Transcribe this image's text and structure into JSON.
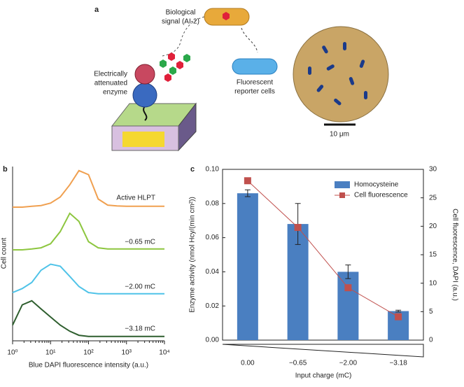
{
  "panel_a": {
    "label": "a",
    "signal_label": [
      "Biological",
      "signal (AI-2)"
    ],
    "enzyme_label": [
      "Electrically",
      "attenuated",
      "enzyme"
    ],
    "reporter_label": [
      "Fluorescent",
      "reporter cells"
    ],
    "scale_bar": "10 μm"
  },
  "chart_data": [
    {
      "type": "line",
      "panel": "b",
      "xlabel": "Blue DAPI fluorescence intensity (a.u.)",
      "ylabel": "Cell count",
      "log_x": true,
      "xlim": [
        1,
        10000
      ],
      "xticks": [
        {
          "value": 1,
          "label": "10⁰"
        },
        {
          "value": 10,
          "label": "10¹"
        },
        {
          "value": 100,
          "label": "10²"
        },
        {
          "value": 1000,
          "label": "10³"
        },
        {
          "value": 10000,
          "label": "10⁴"
        }
      ],
      "x": [
        1,
        1.8,
        3.2,
        5.6,
        10,
        18,
        32,
        56,
        100,
        180,
        320,
        560,
        1000,
        10000
      ],
      "series": [
        {
          "name": "Active HLPT",
          "color": "#f0a050",
          "values": [
            0,
            0,
            0.02,
            0.04,
            0.1,
            0.25,
            0.55,
            0.9,
            0.8,
            0.2,
            0.05,
            0.03,
            0.02,
            0.02
          ]
        },
        {
          "name": "−0.65 mC",
          "color": "#8dc63f",
          "values": [
            0,
            0,
            0.02,
            0.05,
            0.15,
            0.45,
            0.9,
            0.7,
            0.2,
            0.05,
            0.02,
            0.02,
            0.02,
            0.02
          ]
        },
        {
          "name": "−2.00 mC",
          "color": "#4fc3e8",
          "values": [
            0.05,
            0.15,
            0.3,
            0.6,
            0.75,
            0.7,
            0.45,
            0.2,
            0.05,
            0.02,
            0.02,
            0.02,
            0.02,
            0.02
          ]
        },
        {
          "name": "−3.18 mC",
          "color": "#2e5e2e",
          "values": [
            0.3,
            0.8,
            0.9,
            0.7,
            0.5,
            0.3,
            0.15,
            0.05,
            0.02,
            0.02,
            0.02,
            0.02,
            0.02,
            0.02
          ]
        }
      ]
    },
    {
      "type": "bar_line",
      "panel": "c",
      "xlabel": "Input charge (mC)",
      "ylabel": "Enzyme activity (nmol Hcy/(min cm²))",
      "y2label": "Cell fluorescence, DAPI (a.u.)",
      "categories": [
        "0.00",
        "−0.65",
        "−2.00",
        "−3.18"
      ],
      "ylim": [
        0,
        0.1
      ],
      "yticks": [
        {
          "value": 0,
          "label": "0.00"
        },
        {
          "value": 0.02,
          "label": "0.02"
        },
        {
          "value": 0.04,
          "label": "0.04"
        },
        {
          "value": 0.06,
          "label": "0.06"
        },
        {
          "value": 0.08,
          "label": "0.08"
        },
        {
          "value": 0.1,
          "label": "0.10"
        }
      ],
      "y2lim": [
        0,
        30
      ],
      "y2ticks": [
        0,
        5,
        10,
        15,
        20,
        25,
        30
      ],
      "legend": "upper right",
      "series": [
        {
          "name": "Homocysteine",
          "type": "bar",
          "color": "#4a7fc1",
          "values": [
            0.086,
            0.068,
            0.04,
            0.017
          ],
          "errors": [
            0.002,
            0.012,
            0.004,
            0.0005
          ]
        },
        {
          "name": "Cell fluorescence",
          "type": "line",
          "axis": "y2",
          "color": "#c0504d",
          "values": [
            28,
            19.8,
            9.2,
            4.1
          ]
        }
      ]
    }
  ]
}
